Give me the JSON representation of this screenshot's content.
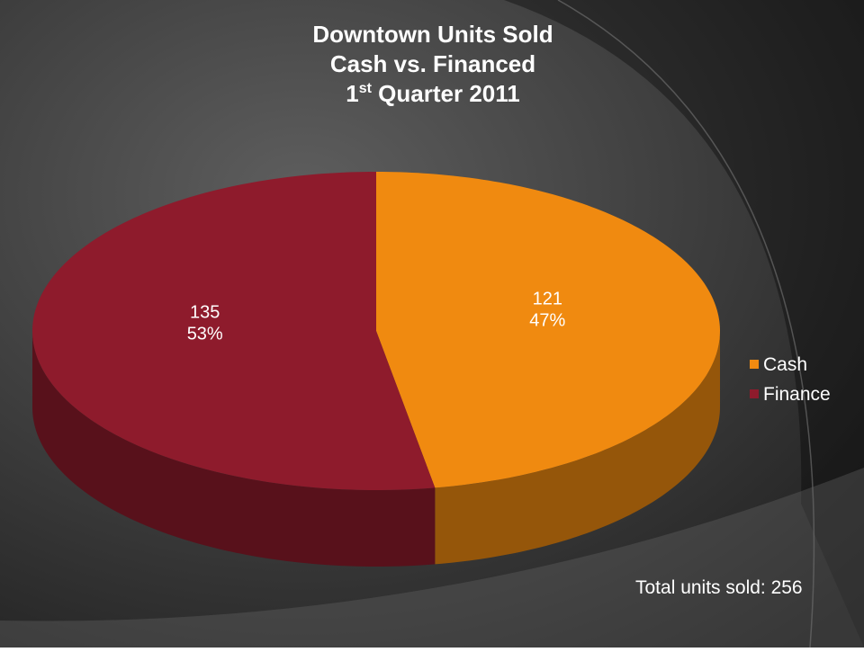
{
  "chart_data": {
    "type": "pie",
    "title": {
      "line1": "Downtown Units Sold",
      "line2": "Cash vs. Financed",
      "line3": {
        "number": "1",
        "superscript": "st",
        "rest": " Quarter 2011"
      }
    },
    "categories": [
      "Cash",
      "Finance"
    ],
    "values": [
      121,
      135
    ],
    "percent_labels": [
      "47%",
      "53%"
    ],
    "colors": [
      "#f08a10",
      "#8e1b2c"
    ],
    "legend": "right",
    "annotation": "Total units sold: 256"
  }
}
